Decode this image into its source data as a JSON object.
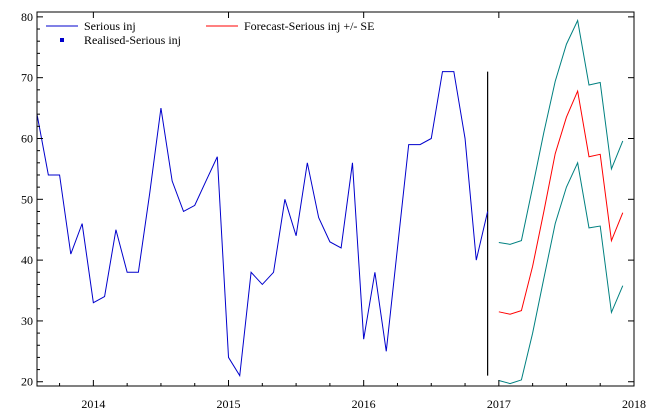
{
  "chart_data": {
    "type": "line",
    "title": "",
    "xlabel": "",
    "ylabel": "",
    "xlim": [
      2013.583,
      2018.0
    ],
    "ylim": [
      19.3,
      80.8
    ],
    "x_ticks": [
      2014,
      2015,
      2016,
      2017,
      2018
    ],
    "y_ticks": [
      20,
      30,
      40,
      50,
      60,
      70,
      80
    ],
    "grid": false,
    "legend_position": "top-left",
    "forecast_origin": 2016.917,
    "series": [
      {
        "name": "Serious inj",
        "color": "#0000cc",
        "x": [
          2013.583,
          2013.667,
          2013.75,
          2013.833,
          2013.917,
          2014.0,
          2014.083,
          2014.167,
          2014.25,
          2014.333,
          2014.417,
          2014.5,
          2014.583,
          2014.667,
          2014.75,
          2014.833,
          2014.917,
          2015.0,
          2015.083,
          2015.167,
          2015.25,
          2015.333,
          2015.417,
          2015.5,
          2015.583,
          2015.667,
          2015.75,
          2015.833,
          2015.917,
          2016.0,
          2016.083,
          2016.167,
          2016.25,
          2016.333,
          2016.417,
          2016.5,
          2016.583,
          2016.667,
          2016.75,
          2016.833,
          2016.917
        ],
        "values": [
          64,
          54,
          54,
          41,
          46,
          33,
          34,
          45,
          38,
          38,
          51,
          65,
          53,
          48,
          49,
          53,
          57,
          24,
          21,
          38,
          36,
          38,
          50,
          44,
          56,
          47,
          43,
          42,
          56,
          27,
          38,
          25,
          42,
          59,
          59,
          60,
          71,
          71,
          60,
          40,
          48
        ]
      },
      {
        "name": "Forecast-Serious inj +/- SE",
        "color": "#ff0000",
        "band_color": "#008080",
        "x": [
          2017.0,
          2017.083,
          2017.167,
          2017.25,
          2017.333,
          2017.417,
          2017.5,
          2017.583,
          2017.667,
          2017.75,
          2017.833,
          2017.917
        ],
        "values": [
          31.5,
          31.1,
          31.7,
          39,
          48,
          57.5,
          63.5,
          67.8,
          57,
          57.4,
          43.2,
          47.8
        ],
        "upper": [
          42.9,
          42.6,
          43.2,
          52,
          61,
          69.4,
          75.5,
          79.4,
          68.8,
          69.2,
          55,
          59.6
        ],
        "lower": [
          20.2,
          19.7,
          20.3,
          28,
          37,
          46,
          52,
          56,
          45.3,
          45.6,
          31.4,
          35.8
        ]
      },
      {
        "name": "Realised-Serious inj",
        "color": "#0000cc",
        "x": [],
        "values": []
      }
    ]
  }
}
